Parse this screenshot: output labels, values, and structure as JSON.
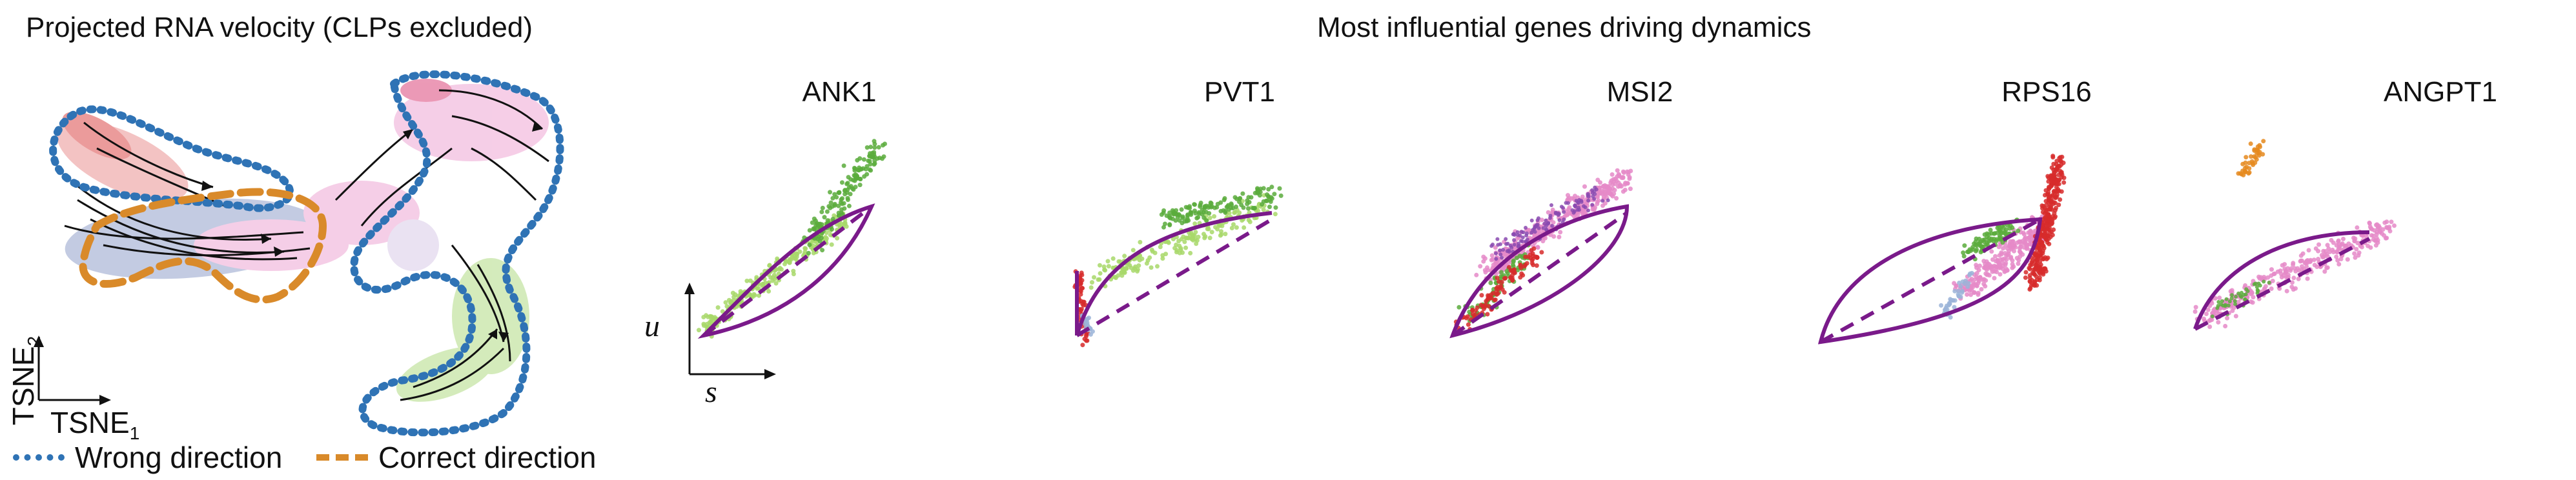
{
  "left_panel": {
    "title": "Projected RNA velocity (CLPs excluded)",
    "axis_y": "TSNE",
    "axis_y_sub": "2",
    "axis_x": "TSNE",
    "axis_x_sub": "1",
    "legend": [
      {
        "label": "Wrong direction",
        "color": "#2f73b5",
        "style": "dotted"
      },
      {
        "label": "Correct direction",
        "color": "#d98a2a",
        "style": "dashed"
      }
    ]
  },
  "right_panel": {
    "title": "Most influential genes driving dynamics",
    "genes": [
      "ANK1",
      "PVT1",
      "MSI2",
      "RPS16",
      "ANGPT1"
    ],
    "phase_axis_u": "u",
    "phase_axis_s": "s"
  },
  "colors": {
    "curve": "#7a1a8a",
    "light_green": "#a8d86a",
    "green": "#5aab3c",
    "pink": "#e58ac8",
    "red": "#d72b2b",
    "orange": "#e58a1f",
    "purple": "#8a4ab0",
    "blue_light": "#9bb4d8"
  }
}
